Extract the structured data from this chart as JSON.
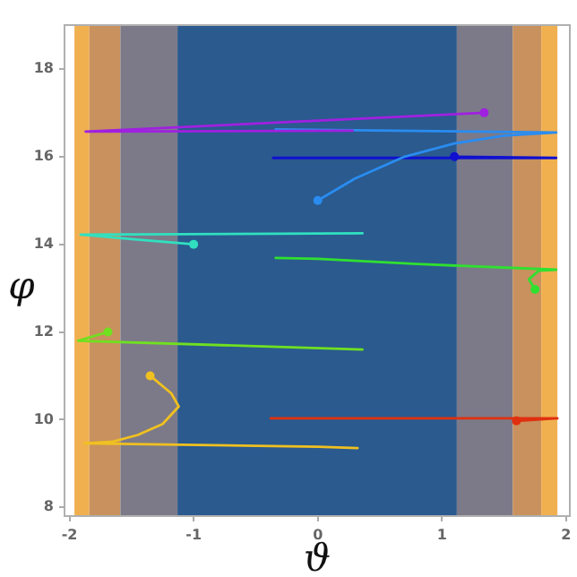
{
  "chart_data": {
    "type": "line",
    "xlabel": "ϑ",
    "ylabel": "φ",
    "xlim": [
      -2.04,
      2.03
    ],
    "ylim": [
      7.8,
      19.0
    ],
    "xticks": [
      -2,
      -1,
      0,
      1,
      2
    ],
    "yticks": [
      8,
      10,
      12,
      14,
      16,
      18
    ],
    "grid": false,
    "legend": false,
    "line_style": "solid",
    "bands": [
      {
        "axis": "x",
        "from": -1.96,
        "to": -1.84,
        "color": "#f0b050"
      },
      {
        "axis": "x",
        "from": -1.84,
        "to": -1.59,
        "color": "#c8915e"
      },
      {
        "axis": "x",
        "from": -1.59,
        "to": -1.13,
        "color": "#7c7a88"
      },
      {
        "axis": "x",
        "from": -1.13,
        "to": 1.12,
        "color": "#2a5a8e"
      },
      {
        "axis": "x",
        "from": 1.12,
        "to": 1.57,
        "color": "#7c7a88"
      },
      {
        "axis": "x",
        "from": 1.57,
        "to": 1.8,
        "color": "#c8915e"
      },
      {
        "axis": "x",
        "from": 1.8,
        "to": 1.93,
        "color": "#f0b050"
      }
    ],
    "series": [
      {
        "color": "#a020e0",
        "x": [
          1.34,
          -1.87,
          0.28
        ],
        "values": [
          17.0,
          16.57,
          16.59
        ]
      },
      {
        "color": "#2a8cf0",
        "x": [
          0,
          0.3,
          0.7,
          1.1,
          1.5,
          1.92,
          -0.34
        ],
        "values": [
          15.0,
          15.5,
          16.0,
          16.3,
          16.48,
          16.55,
          16.62
        ]
      },
      {
        "color": "#1010d0",
        "x": [
          1.1,
          1.92,
          -0.36
        ],
        "values": [
          16.0,
          15.97,
          15.97
        ]
      },
      {
        "color": "#30e0c0",
        "x": [
          -1.0,
          -1.5,
          -1.91,
          0.36
        ],
        "values": [
          14.0,
          14.12,
          14.22,
          14.25
        ]
      },
      {
        "color": "#30e030",
        "x": [
          1.75,
          1.7,
          1.78,
          1.92,
          0.8,
          0,
          -0.34
        ],
        "values": [
          12.97,
          13.2,
          13.4,
          13.42,
          13.55,
          13.67,
          13.69
        ]
      },
      {
        "color": "#70e020",
        "x": [
          -1.69,
          -1.93,
          0.36
        ],
        "values": [
          12.0,
          11.8,
          11.6
        ]
      },
      {
        "color": "#f0c020",
        "x": [
          -1.35,
          -1.18,
          -1.12,
          -1.25,
          -1.45,
          -1.65,
          -1.88,
          0,
          0.32
        ],
        "values": [
          11.0,
          10.6,
          10.3,
          9.9,
          9.65,
          9.5,
          9.46,
          9.38,
          9.35
        ]
      },
      {
        "color": "#e03010",
        "x": [
          1.6,
          1.93,
          -0.38
        ],
        "values": [
          9.97,
          10.03,
          10.03
        ]
      },
      {
        "type": "scatter",
        "marker": "circle",
        "color": "#a020e0",
        "x": [
          1.34
        ],
        "values": [
          17.0
        ]
      },
      {
        "type": "scatter",
        "marker": "circle",
        "color": "#2a8cf0",
        "x": [
          0
        ],
        "values": [
          15.0
        ]
      },
      {
        "type": "scatter",
        "marker": "circle",
        "color": "#1010d0",
        "x": [
          1.1
        ],
        "values": [
          16.0
        ]
      },
      {
        "type": "scatter",
        "marker": "circle",
        "color": "#30e0c0",
        "x": [
          -1.0
        ],
        "values": [
          14.0
        ]
      },
      {
        "type": "scatter",
        "marker": "circle",
        "color": "#30e030",
        "x": [
          1.75
        ],
        "values": [
          12.97
        ]
      },
      {
        "type": "scatter",
        "marker": "circle",
        "color": "#70e020",
        "x": [
          -1.69
        ],
        "values": [
          12.0
        ]
      },
      {
        "type": "scatter",
        "marker": "circle",
        "color": "#f0c020",
        "x": [
          -1.35
        ],
        "values": [
          11.0
        ]
      },
      {
        "type": "scatter",
        "marker": "circle",
        "color": "#e03010",
        "x": [
          1.6
        ],
        "values": [
          9.97
        ]
      }
    ]
  }
}
